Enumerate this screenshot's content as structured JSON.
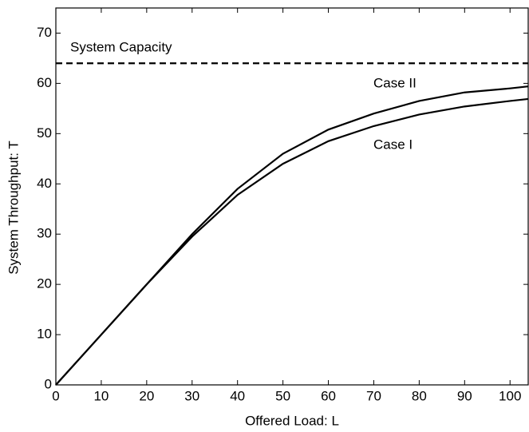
{
  "chart_data": {
    "type": "line",
    "x_label": "Offered Load: L",
    "y_label": "System Throughput: T",
    "x": [
      0,
      10,
      20,
      30,
      40,
      50,
      60,
      70,
      80,
      90,
      100,
      104
    ],
    "series": [
      {
        "name": "Case I",
        "color": "#000000",
        "values": [
          0,
          10,
          20,
          29.5,
          37.8,
          44,
          48.5,
          51.5,
          53.8,
          55.4,
          56.5,
          56.9
        ]
      },
      {
        "name": "Case II",
        "color": "#000000",
        "values": [
          0,
          10,
          20,
          30,
          39,
          46,
          50.8,
          54,
          56.5,
          58.2,
          59,
          59.4
        ]
      }
    ],
    "reference_line": {
      "label": "System Capacity",
      "value": 64,
      "style": "dashed",
      "color": "#000000"
    },
    "xlim": [
      0,
      104
    ],
    "xticks": [
      0,
      10,
      20,
      30,
      40,
      50,
      60,
      70,
      80,
      90,
      100
    ],
    "ylim": [
      0,
      75
    ],
    "yticks": [
      0,
      10,
      20,
      30,
      40,
      50,
      60,
      70
    ],
    "grid": false
  }
}
